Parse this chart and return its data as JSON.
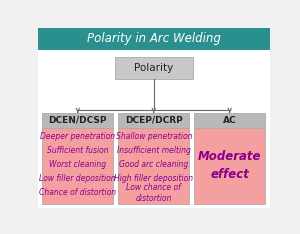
{
  "title": "Polarity in Arc Welding",
  "title_bg": "#2a8f8f",
  "title_color": "white",
  "bg_color": "#f0f0f0",
  "root_label": "Polarity",
  "root_box_color": "#c8c8c8",
  "header_box_color": "#b8b8b8",
  "content_box_color": "#f5a0a0",
  "columns": [
    {
      "header": "DCEN/DCSP",
      "items": [
        "Deeper penetration",
        "Sufficient fusion",
        "Worst cleaning",
        "Low filler deposition",
        "Chance of distortion"
      ]
    },
    {
      "header": "DCEP/DCRP",
      "items": [
        "Shallow penetration",
        "Insufficient melting",
        "Good arc cleaning",
        "High filler deposition",
        "Low chance of\ndistortion"
      ]
    },
    {
      "header": "AC",
      "items": [
        "Moderate\neffect"
      ]
    }
  ],
  "item_color": "#8b008b",
  "header_text_color": "#222222",
  "arrow_color": "#666666",
  "title_fontsize": 8.5,
  "root_fontsize": 7.5,
  "header_fontsize": 6.5,
  "item_fontsize": 5.5,
  "ac_fontsize": 8.5
}
